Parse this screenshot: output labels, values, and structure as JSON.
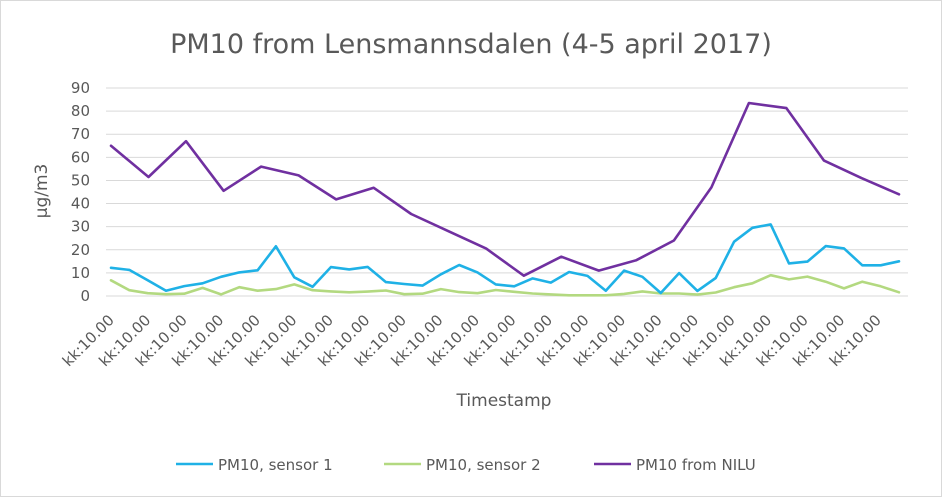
{
  "chart_data": {
    "type": "line",
    "title": "PM10 from Lensmannsdalen (4-5 april 2017)",
    "xlabel": "Timestamp",
    "ylabel": "µg/m3",
    "ylim": [
      0,
      90
    ],
    "yticks": [
      0,
      10,
      20,
      30,
      40,
      50,
      60,
      70,
      80,
      90
    ],
    "grid": true,
    "legend_position": "bottom",
    "x_tick_labels": [
      "kk:10.00",
      "kk:10.00",
      "kk:10.00",
      "kk:10.00",
      "kk:10.00",
      "kk:10.00",
      "kk:10.00",
      "kk:10.00",
      "kk:10.00",
      "kk:10.00",
      "kk:10.00",
      "kk:10.00",
      "kk:10.00",
      "kk:10.00",
      "kk:10.00",
      "kk:10.00",
      "kk:10.00",
      "kk:10.00",
      "kk:10.00",
      "kk:10.00",
      "kk:10.00",
      "kk:10.00"
    ],
    "series": [
      {
        "name": "PM10, sensor 1",
        "color": "#1fb1e6",
        "values": [
          12.2,
          11.3,
          6.8,
          2.3,
          4.3,
          5.5,
          8.3,
          10.2,
          11.1,
          21.5,
          8.1,
          4.0,
          12.5,
          11.5,
          12.6,
          6.0,
          5.2,
          4.5,
          9.4,
          13.4,
          10.2,
          5.0,
          4.2,
          7.6,
          5.8,
          10.4,
          8.7,
          2.3,
          11.0,
          8.3,
          1.3,
          9.9,
          2.2,
          7.8,
          23.5,
          29.5,
          31.0,
          14.1,
          14.9,
          21.6,
          20.6,
          13.3,
          13.3,
          15.0
        ]
      },
      {
        "name": "PM10, sensor 2",
        "color": "#b3d980",
        "values": [
          6.8,
          2.5,
          1.2,
          0.8,
          1.0,
          3.5,
          0.7,
          3.8,
          2.3,
          3.0,
          5.0,
          2.5,
          2.0,
          1.6,
          1.9,
          2.4,
          0.8,
          1.0,
          3.0,
          1.7,
          1.2,
          2.6,
          1.8,
          1.1,
          0.7,
          0.3,
          0.3,
          0.3,
          0.9,
          2.0,
          1.1,
          1.1,
          0.6,
          1.5,
          3.8,
          5.5,
          9.0,
          7.2,
          8.4,
          6.2,
          3.3,
          6.2,
          4.2,
          1.6
        ]
      },
      {
        "name": "PM10 from NILU",
        "color": "#7030a0",
        "values": [
          65.0,
          51.5,
          67.0,
          45.5,
          56.0,
          52.2,
          41.8,
          46.8,
          35.5,
          28.0,
          20.5,
          8.8,
          17.0,
          11.0,
          15.5,
          24.0,
          47.0,
          83.5,
          81.3,
          58.6,
          51.0,
          44.0
        ]
      }
    ]
  }
}
